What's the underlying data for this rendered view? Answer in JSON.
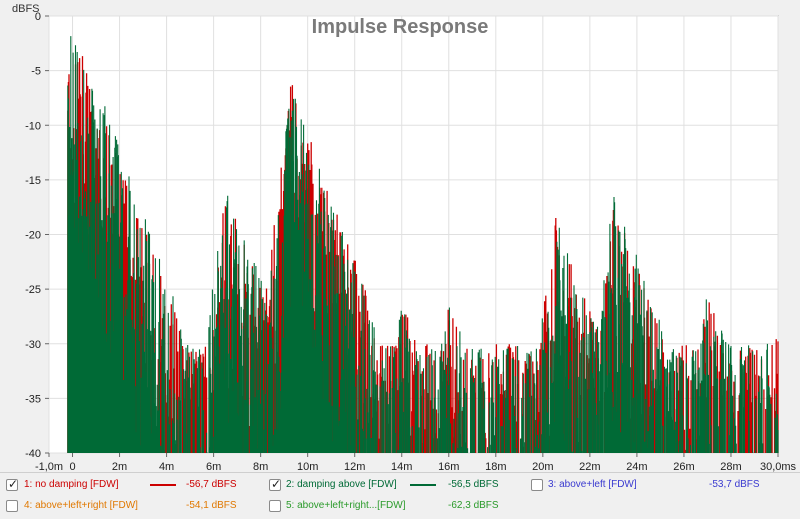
{
  "chart_data": {
    "type": "line",
    "title": "Impulse Response",
    "ylabel": "dBFS",
    "xlim": [
      -1.0,
      30.0
    ],
    "ylim": [
      -40,
      0
    ],
    "grid": true,
    "x_tick_labels": [
      "-1,0m",
      "0",
      "2m",
      "4m",
      "6m",
      "8m",
      "10m",
      "12m",
      "14m",
      "16m",
      "18m",
      "20m",
      "22m",
      "24m",
      "26m",
      "28m",
      "30,0ms"
    ],
    "y_tick_labels": [
      "0",
      "-5",
      "-10",
      "-15",
      "-20",
      "-25",
      "-30",
      "-35",
      "-40"
    ],
    "x_ticks": [
      -1,
      0,
      2,
      4,
      6,
      8,
      10,
      12,
      14,
      16,
      18,
      20,
      22,
      24,
      26,
      28,
      30
    ],
    "y_ticks": [
      0,
      -5,
      -10,
      -15,
      -20,
      -25,
      -30,
      -35,
      -40
    ],
    "series": [
      {
        "name": "no damping [FDW]",
        "color": "#cc0000",
        "envelope_peaks": [
          [
            0,
            -1
          ],
          [
            0.2,
            -7
          ],
          [
            1.2,
            -9
          ],
          [
            1.5,
            -10
          ],
          [
            2,
            -21
          ],
          [
            3.5,
            -23
          ],
          [
            6.5,
            -16
          ],
          [
            9.3,
            -6
          ],
          [
            10.5,
            -18
          ],
          [
            14,
            -26
          ],
          [
            16,
            -26
          ],
          [
            20.5,
            -18
          ],
          [
            23,
            -17
          ],
          [
            23.7,
            -22
          ],
          [
            27,
            -25
          ],
          [
            30,
            -27
          ]
        ]
      },
      {
        "name": "damping above [FDW]",
        "color": "#006a36",
        "envelope_peaks": [
          [
            0,
            0
          ],
          [
            0.2,
            -6
          ],
          [
            1.2,
            -8
          ],
          [
            1.5,
            -9
          ],
          [
            2,
            -20
          ],
          [
            3.5,
            -21
          ],
          [
            6.5,
            -15
          ],
          [
            9.3,
            -6.5
          ],
          [
            10.5,
            -17
          ],
          [
            14,
            -25
          ],
          [
            16,
            -26
          ],
          [
            20.5,
            -18
          ],
          [
            23,
            -16
          ],
          [
            23.7,
            -21
          ],
          [
            27,
            -25
          ],
          [
            30,
            -26
          ]
        ]
      }
    ]
  },
  "legend": [
    {
      "index": "1",
      "label": "1: no damping [FDW]",
      "value": "-56,7 dBFS",
      "color": "#cc0000",
      "checked": true
    },
    {
      "index": "2",
      "label": "2: damping above [FDW]",
      "value": "-56,5 dBFS",
      "color": "#006a36",
      "checked": true
    },
    {
      "index": "3",
      "label": "3: above+left [FDW]",
      "value": "-53,7 dBFS",
      "color": "#3a3ad0",
      "checked": false
    },
    {
      "index": "4",
      "label": "4: above+left+right [FDW]",
      "value": "-54,1 dBFS",
      "color": "#e07800",
      "checked": false
    },
    {
      "index": "5",
      "label": "5: above+left+right...[FDW]",
      "value": "-62,3 dBFS",
      "color": "#2a9a2a",
      "checked": false
    }
  ]
}
